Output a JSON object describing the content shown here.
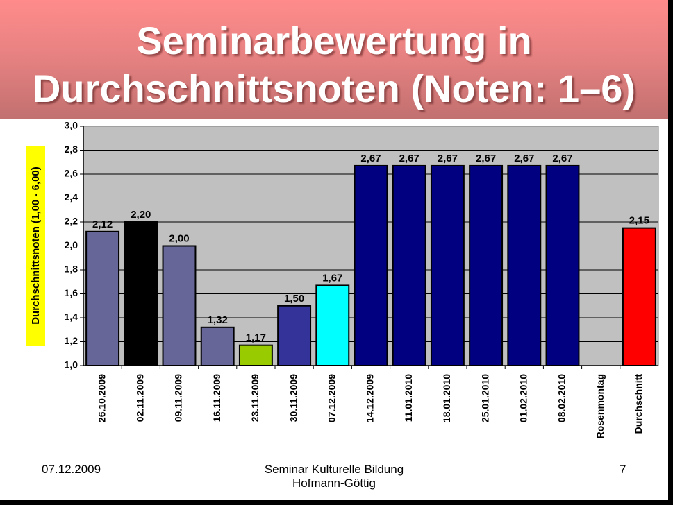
{
  "slide": {
    "title_line1": "Seminarbewertung in",
    "title_line2": "Durchschnittsnoten (Noten: 1–6)",
    "footer_date": "07.12.2009",
    "footer_seminar": "Seminar Kulturelle Bildung",
    "footer_author": "Hofmann-Göttig",
    "page_number": "7"
  },
  "chart_data": {
    "type": "bar",
    "title": "",
    "xlabel": "",
    "ylabel": "Durchschnittsnoten (1,00 - 6,00)",
    "ylim": [
      1.0,
      3.0
    ],
    "ytick_step": 0.2,
    "yticks": [
      "1,0",
      "1,2",
      "1,4",
      "1,6",
      "1,8",
      "2,0",
      "2,2",
      "2,4",
      "2,6",
      "2,8",
      "3,0"
    ],
    "grid": true,
    "legend": "none",
    "categories": [
      "26.10.2009",
      "02.11.2009",
      "09.11.2009",
      "16.11.2009",
      "23.11.2009",
      "30.11.2009",
      "07.12.2009",
      "14.12.2009",
      "11.01.2010",
      "18.01.2010",
      "25.01.2010",
      "01.02.2010",
      "08.02.2010",
      "Rosenmontag",
      "Durchschnitt"
    ],
    "values": [
      2.12,
      2.2,
      2.0,
      1.32,
      1.17,
      1.5,
      1.67,
      2.67,
      2.67,
      2.67,
      2.67,
      2.67,
      2.67,
      null,
      2.15
    ],
    "value_labels": [
      "2,12",
      "2,20",
      "2,00",
      "1,32",
      "1,17",
      "1,50",
      "1,67",
      "2,67",
      "2,67",
      "2,67",
      "2,67",
      "2,67",
      "2,67",
      "",
      "2,15"
    ],
    "colors": [
      "#666699",
      "#000000",
      "#666699",
      "#666699",
      "#99cc00",
      "#333399",
      "#00ffff",
      "#000080",
      "#000080",
      "#000080",
      "#000080",
      "#000080",
      "#000080",
      "#c0c0c0",
      "#ff0000"
    ],
    "plot_background": "#c0c0c0",
    "ylabel_background": "#ffff00"
  }
}
